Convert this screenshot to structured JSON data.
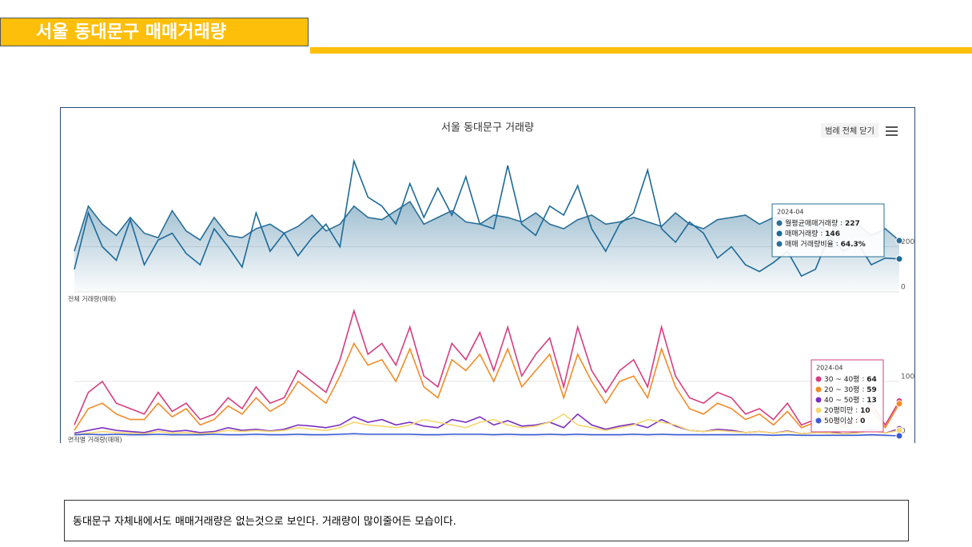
{
  "header": {
    "title": "서울 동대문구 매매거래량"
  },
  "panel": {
    "title": "서울 동대문구 거래량",
    "legend_button": "범례 전체 닫기"
  },
  "chart_data": [
    {
      "type": "line",
      "label": "전체 거래량(매매)",
      "ylim": [
        0,
        620
      ],
      "yticks": [
        0,
        200
      ],
      "grid": true,
      "series": [
        {
          "name": "월평균매매거래량",
          "color": "#2a6f97",
          "area": true,
          "values": [
            180,
            380,
            300,
            250,
            330,
            260,
            240,
            360,
            270,
            230,
            330,
            250,
            240,
            280,
            300,
            260,
            290,
            340,
            270,
            300,
            380,
            330,
            320,
            360,
            400,
            300,
            330,
            360,
            310,
            300,
            340,
            330,
            310,
            350,
            300,
            280,
            320,
            340,
            300,
            310,
            330,
            310,
            290,
            350,
            300,
            280,
            320,
            330,
            340,
            300,
            330,
            320,
            290,
            300,
            260,
            310,
            300,
            250,
            280,
            227
          ]
        },
        {
          "name": "매매거래량",
          "color": "#1b6a98",
          "area": false,
          "values": [
            100,
            350,
            200,
            140,
            320,
            120,
            230,
            260,
            170,
            120,
            280,
            200,
            110,
            350,
            180,
            260,
            160,
            240,
            300,
            200,
            580,
            420,
            380,
            300,
            480,
            330,
            460,
            340,
            510,
            300,
            280,
            560,
            300,
            250,
            380,
            340,
            470,
            280,
            180,
            300,
            350,
            540,
            280,
            220,
            310,
            260,
            150,
            200,
            120,
            90,
            130,
            180,
            70,
            100,
            250,
            180,
            220,
            120,
            150,
            146
          ]
        }
      ],
      "tooltip": {
        "date": "2024-04",
        "items": [
          {
            "name": "월평균매매거래량",
            "value": 227
          },
          {
            "name": "매매거래량",
            "value": 146
          },
          {
            "name": "매매 거래량비율",
            "value": 64.3,
            "value_label": "64.3%"
          }
        ]
      }
    },
    {
      "type": "line",
      "label": "면적별 거래량(매매)",
      "ylim": [
        0,
        250
      ],
      "yticks": [
        0,
        100
      ],
      "grid": true,
      "series": [
        {
          "name": "30 ~ 40평",
          "color": "#d63d7f",
          "values": [
            20,
            80,
            100,
            60,
            50,
            40,
            80,
            45,
            60,
            30,
            40,
            70,
            50,
            90,
            60,
            70,
            120,
            100,
            80,
            140,
            230,
            150,
            170,
            130,
            200,
            110,
            90,
            170,
            140,
            190,
            120,
            200,
            110,
            150,
            180,
            90,
            200,
            120,
            80,
            120,
            140,
            90,
            200,
            110,
            70,
            60,
            80,
            70,
            40,
            50,
            30,
            60,
            20,
            30,
            40,
            20,
            30,
            60,
            20,
            64
          ]
        },
        {
          "name": "20 ~ 30평",
          "color": "#f28c28",
          "values": [
            10,
            50,
            60,
            40,
            30,
            30,
            60,
            35,
            50,
            20,
            30,
            55,
            40,
            70,
            45,
            60,
            100,
            80,
            60,
            110,
            170,
            130,
            140,
            100,
            160,
            90,
            70,
            140,
            120,
            150,
            100,
            160,
            90,
            120,
            150,
            70,
            150,
            100,
            60,
            100,
            110,
            70,
            160,
            90,
            50,
            40,
            60,
            50,
            30,
            40,
            20,
            45,
            15,
            25,
            30,
            15,
            25,
            50,
            15,
            59
          ]
        },
        {
          "name": "40 ~ 50평",
          "color": "#7b2fbf",
          "values": [
            5,
            10,
            15,
            10,
            8,
            6,
            12,
            8,
            10,
            6,
            8,
            15,
            10,
            12,
            9,
            12,
            20,
            18,
            15,
            20,
            35,
            25,
            30,
            20,
            25,
            18,
            15,
            30,
            25,
            35,
            20,
            28,
            18,
            20,
            25,
            15,
            40,
            20,
            12,
            18,
            22,
            15,
            30,
            18,
            10,
            8,
            12,
            10,
            6,
            8,
            5,
            9,
            4,
            6,
            8,
            4,
            6,
            12,
            5,
            13
          ]
        },
        {
          "name": "20평미만",
          "color": "#f5d76e",
          "values": [
            2,
            5,
            8,
            6,
            5,
            4,
            8,
            5,
            6,
            4,
            6,
            10,
            8,
            10,
            8,
            10,
            15,
            12,
            10,
            15,
            25,
            20,
            18,
            15,
            20,
            30,
            25,
            20,
            15,
            25,
            30,
            20,
            15,
            18,
            25,
            40,
            20,
            15,
            10,
            15,
            20,
            30,
            25,
            20,
            10,
            8,
            10,
            8,
            6,
            8,
            5,
            8,
            4,
            6,
            5,
            4,
            5,
            10,
            5,
            10
          ]
        },
        {
          "name": "50평이상",
          "color": "#3a5bd6",
          "values": [
            2,
            3,
            2,
            3,
            2,
            2,
            3,
            2,
            2,
            2,
            3,
            2,
            2,
            3,
            2,
            2,
            3,
            2,
            2,
            3,
            4,
            3,
            3,
            3,
            3,
            2,
            2,
            3,
            3,
            3,
            2,
            3,
            2,
            2,
            3,
            2,
            3,
            2,
            2,
            2,
            3,
            2,
            3,
            2,
            2,
            2,
            2,
            2,
            2,
            2,
            1,
            2,
            1,
            1,
            1,
            1,
            1,
            2,
            1,
            0
          ]
        }
      ],
      "tooltip": {
        "date": "2024-04",
        "items": [
          {
            "name": "30 ~ 40평",
            "value": 64
          },
          {
            "name": "20 ~ 30평",
            "value": 59
          },
          {
            "name": "40 ~ 50평",
            "value": 13
          },
          {
            "name": "20평미만",
            "value": 10
          },
          {
            "name": "50평이상",
            "value": 0
          }
        ]
      }
    }
  ],
  "footer": {
    "text": "동대문구 자체내에서도 매매거래량은 없는것으로 보인다. 거래량이 많이줄어든 모습이다."
  }
}
